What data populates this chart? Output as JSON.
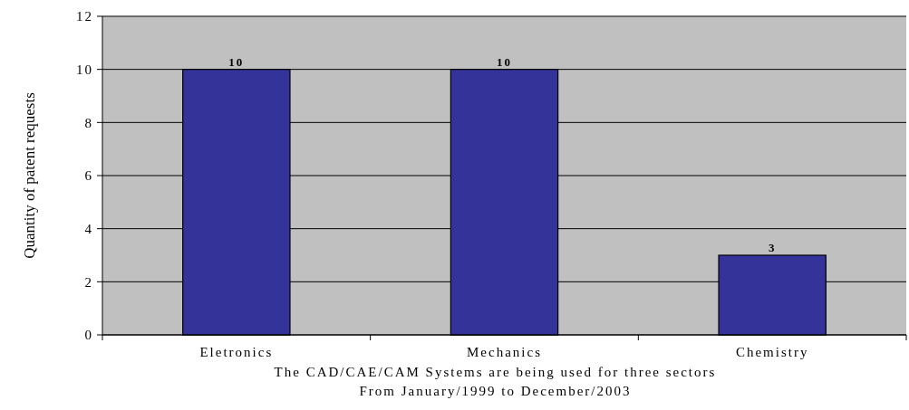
{
  "chart_data": {
    "type": "bar",
    "ylabel": "Quantity of patent requests",
    "xlabel": "The CAD/CAE/CAM Systems are being used for three sectors",
    "annotations": [
      "From January/1999 to December/2003"
    ],
    "categories": [
      "Eletronics",
      "Mechanics",
      "Chemistry"
    ],
    "values": [
      10,
      10,
      3
    ],
    "color": "#333399",
    "ylim": [
      0,
      12
    ],
    "yticks": [
      0,
      2,
      4,
      6,
      8,
      10,
      12
    ],
    "grid": "y",
    "data_labels": true
  }
}
